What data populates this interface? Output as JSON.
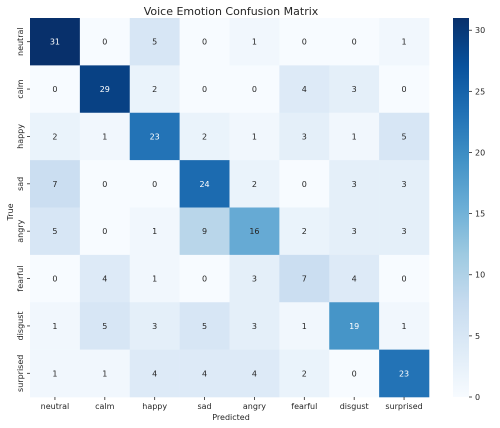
{
  "chart_data": {
    "type": "heatmap",
    "title": "Voice Emotion Confusion Matrix",
    "xlabel": "Predicted",
    "ylabel": "True",
    "x_categories": [
      "neutral",
      "calm",
      "happy",
      "sad",
      "angry",
      "fearful",
      "disgust",
      "surprised"
    ],
    "y_categories": [
      "neutral",
      "calm",
      "happy",
      "sad",
      "angry",
      "fearful",
      "disgust",
      "surprised"
    ],
    "values": [
      [
        31,
        0,
        5,
        0,
        1,
        0,
        0,
        1
      ],
      [
        0,
        29,
        2,
        0,
        0,
        4,
        3,
        0
      ],
      [
        2,
        1,
        23,
        2,
        1,
        3,
        1,
        5
      ],
      [
        7,
        0,
        0,
        24,
        2,
        0,
        3,
        3
      ],
      [
        5,
        0,
        1,
        9,
        16,
        2,
        3,
        3
      ],
      [
        0,
        4,
        1,
        0,
        3,
        7,
        4,
        0
      ],
      [
        1,
        5,
        3,
        5,
        3,
        1,
        19,
        1
      ],
      [
        1,
        1,
        4,
        4,
        4,
        2,
        0,
        23
      ]
    ],
    "colorbar": {
      "colormap": "Blues",
      "range": [
        0,
        31
      ],
      "ticks": [
        0,
        5,
        10,
        15,
        20,
        25,
        30
      ]
    }
  }
}
